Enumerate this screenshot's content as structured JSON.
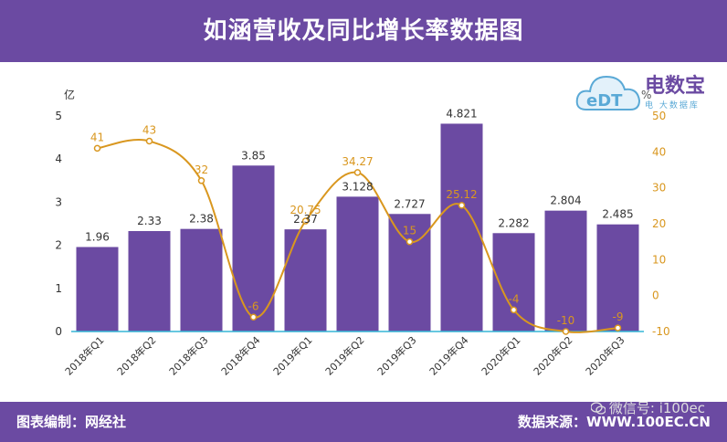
{
  "header": {
    "title": "如涵营收及同比增长率数据图"
  },
  "footer": {
    "chart_credit": "图表编制：网经社",
    "data_source": "数据来源：WWW.100EC.CN",
    "wechat": "微信号: i100ec"
  },
  "logo": {
    "text": "电数宝",
    "subtext": "电 大数据库",
    "icon_text": "eDT"
  },
  "colors": {
    "bar": "#6b4aa2",
    "line": "#d9971f",
    "header_bg": "#6b4aa2",
    "axis_zero": "#35b6d6"
  },
  "chart_data": {
    "type": "bar",
    "title": "如涵营收及同比增长率数据图",
    "categories": [
      "2018年Q1",
      "2018年Q2",
      "2018年Q3",
      "2018年Q4",
      "2019年Q1",
      "2019年Q2",
      "2019年Q3",
      "2019年Q4",
      "2020年Q1",
      "2020年Q2",
      "2020年Q3"
    ],
    "series": [
      {
        "type": "bar",
        "axis": "left",
        "values": [
          1.96,
          2.33,
          2.38,
          3.85,
          2.37,
          3.128,
          2.727,
          4.821,
          2.282,
          2.804,
          2.485
        ],
        "labels": [
          "1.96",
          "2.33",
          "2.38",
          "3.85",
          "2.37",
          "3.128",
          "2.727",
          "4.821",
          "2.282",
          "2.804",
          "2.485"
        ]
      },
      {
        "type": "line",
        "axis": "right",
        "values": [
          41,
          43,
          32,
          -6,
          20.75,
          34.27,
          15,
          25.12,
          -4,
          -10,
          -9
        ],
        "labels": [
          "41",
          "43",
          "32",
          "-6",
          "20.75",
          "34.27",
          "15",
          "25.12",
          "-4",
          "-10",
          "-9"
        ]
      }
    ],
    "y_left": {
      "label": "亿",
      "ylim": [
        0,
        5
      ],
      "ticks": [
        "0",
        "1",
        "2",
        "3",
        "4",
        "5"
      ]
    },
    "y_right": {
      "label": "%",
      "ylim": [
        -10,
        50
      ],
      "ticks": [
        "-10",
        "0",
        "10",
        "20",
        "30",
        "40",
        "50"
      ]
    },
    "grid": false,
    "legend": "none"
  }
}
